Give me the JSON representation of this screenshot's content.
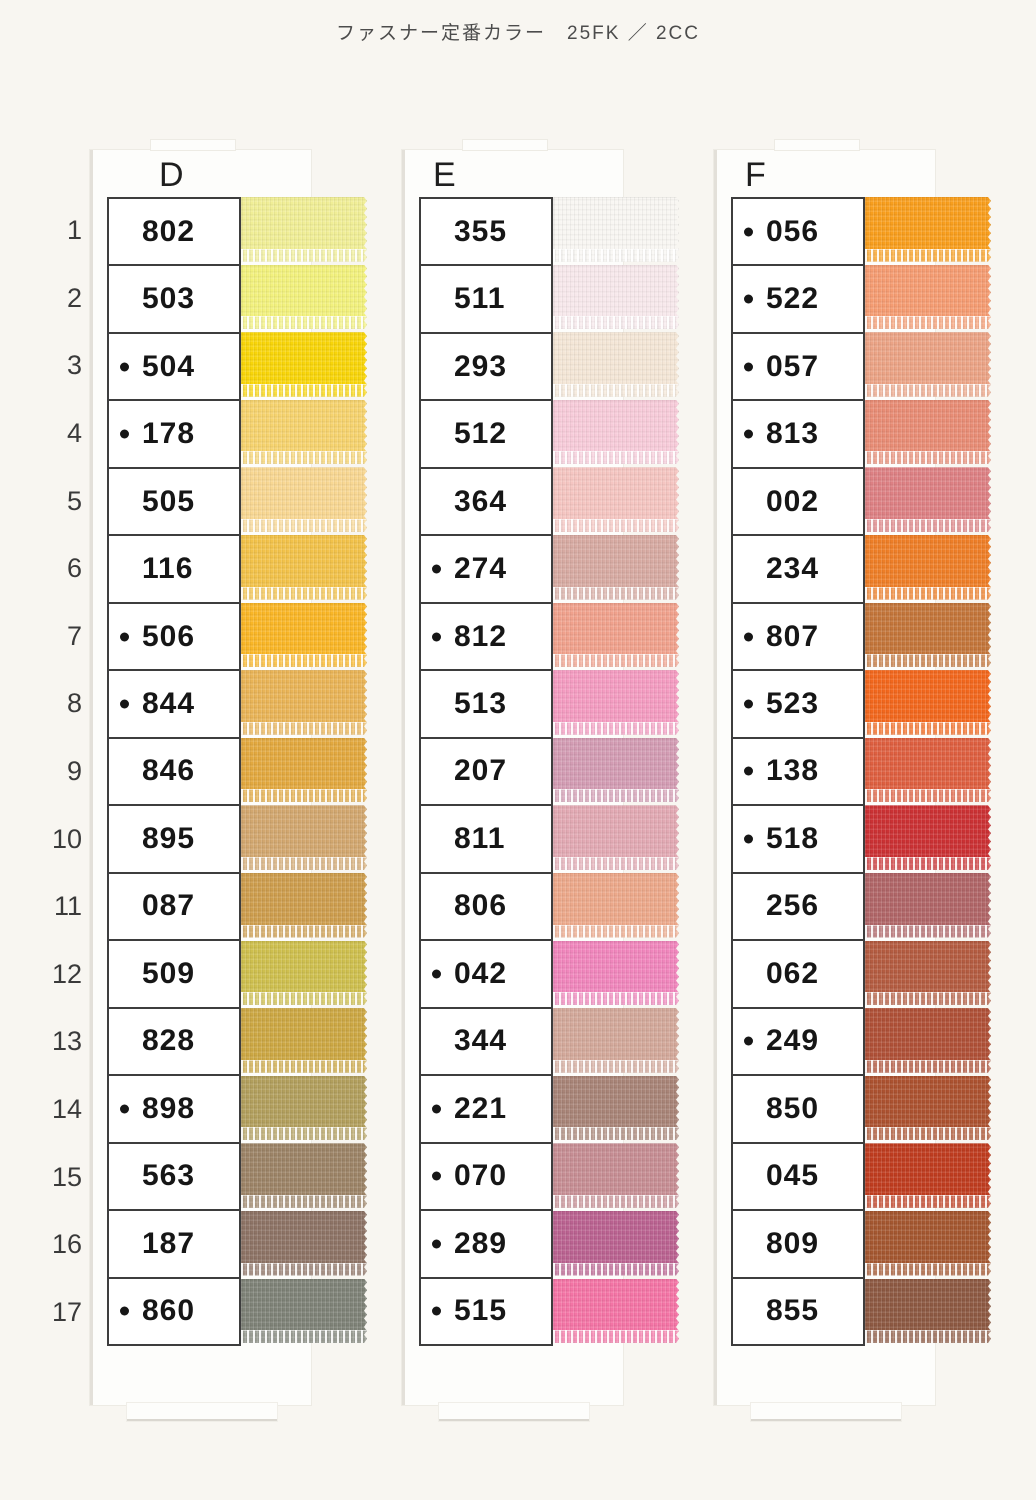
{
  "title": "ファスナー定番カラー　25FK ／ 2CC",
  "row_numbers": [
    "1",
    "2",
    "3",
    "4",
    "5",
    "6",
    "7",
    "8",
    "9",
    "10",
    "11",
    "12",
    "13",
    "14",
    "15",
    "16",
    "17"
  ],
  "columns": [
    {
      "label": "D",
      "rows": [
        {
          "code": "802",
          "dot": false,
          "color": "#f0ee96"
        },
        {
          "code": "503",
          "dot": false,
          "color": "#f2f17d"
        },
        {
          "code": "504",
          "dot": true,
          "color": "#f8d509"
        },
        {
          "code": "178",
          "dot": true,
          "color": "#f6d36e"
        },
        {
          "code": "505",
          "dot": false,
          "color": "#f8d792"
        },
        {
          "code": "116",
          "dot": false,
          "color": "#f2c24a"
        },
        {
          "code": "506",
          "dot": true,
          "color": "#f9b626"
        },
        {
          "code": "844",
          "dot": true,
          "color": "#e9b457"
        },
        {
          "code": "846",
          "dot": false,
          "color": "#e2a83f"
        },
        {
          "code": "895",
          "dot": false,
          "color": "#d2a76f"
        },
        {
          "code": "087",
          "dot": false,
          "color": "#cd9d4d"
        },
        {
          "code": "509",
          "dot": false,
          "color": "#cebf4e"
        },
        {
          "code": "828",
          "dot": false,
          "color": "#cca743"
        },
        {
          "code": "898",
          "dot": true,
          "color": "#b29f5d"
        },
        {
          "code": "563",
          "dot": false,
          "color": "#9c8366"
        },
        {
          "code": "187",
          "dot": false,
          "color": "#8d7365"
        },
        {
          "code": "860",
          "dot": true,
          "color": "#7e8277"
        }
      ]
    },
    {
      "label": "E",
      "rows": [
        {
          "code": "355",
          "dot": false,
          "color": "#f8f6f2"
        },
        {
          "code": "511",
          "dot": false,
          "color": "#f7e8eb"
        },
        {
          "code": "293",
          "dot": false,
          "color": "#f4e6d6"
        },
        {
          "code": "512",
          "dot": false,
          "color": "#f7cbd9"
        },
        {
          "code": "364",
          "dot": false,
          "color": "#f5c5c1"
        },
        {
          "code": "274",
          "dot": true,
          "color": "#d7aaa2"
        },
        {
          "code": "812",
          "dot": true,
          "color": "#f0a18c"
        },
        {
          "code": "513",
          "dot": false,
          "color": "#f49cc1"
        },
        {
          "code": "207",
          "dot": false,
          "color": "#d39cb3"
        },
        {
          "code": "811",
          "dot": false,
          "color": "#e2a9b3"
        },
        {
          "code": "806",
          "dot": false,
          "color": "#eca88a"
        },
        {
          "code": "042",
          "dot": true,
          "color": "#f086bc"
        },
        {
          "code": "344",
          "dot": false,
          "color": "#d3a89a"
        },
        {
          "code": "221",
          "dot": true,
          "color": "#a88477"
        },
        {
          "code": "070",
          "dot": true,
          "color": "#c68d93"
        },
        {
          "code": "289",
          "dot": true,
          "color": "#ba6290"
        },
        {
          "code": "515",
          "dot": true,
          "color": "#f474a5"
        }
      ]
    },
    {
      "label": "F",
      "rows": [
        {
          "code": "056",
          "dot": true,
          "color": "#f89e1d"
        },
        {
          "code": "522",
          "dot": true,
          "color": "#f59c72"
        },
        {
          "code": "057",
          "dot": true,
          "color": "#eba385"
        },
        {
          "code": "813",
          "dot": true,
          "color": "#e88c75"
        },
        {
          "code": "002",
          "dot": false,
          "color": "#dd8083"
        },
        {
          "code": "234",
          "dot": false,
          "color": "#ee7e27"
        },
        {
          "code": "807",
          "dot": true,
          "color": "#c3753a"
        },
        {
          "code": "523",
          "dot": true,
          "color": "#f2671d"
        },
        {
          "code": "138",
          "dot": true,
          "color": "#de5f40"
        },
        {
          "code": "518",
          "dot": true,
          "color": "#cb3134"
        },
        {
          "code": "256",
          "dot": false,
          "color": "#b06567"
        },
        {
          "code": "062",
          "dot": false,
          "color": "#b45c41"
        },
        {
          "code": "249",
          "dot": true,
          "color": "#af5037"
        },
        {
          "code": "850",
          "dot": false,
          "color": "#ac5230"
        },
        {
          "code": "045",
          "dot": false,
          "color": "#bf3c1f"
        },
        {
          "code": "809",
          "dot": false,
          "color": "#a45730"
        },
        {
          "code": "855",
          "dot": false,
          "color": "#8d5942"
        }
      ]
    }
  ]
}
